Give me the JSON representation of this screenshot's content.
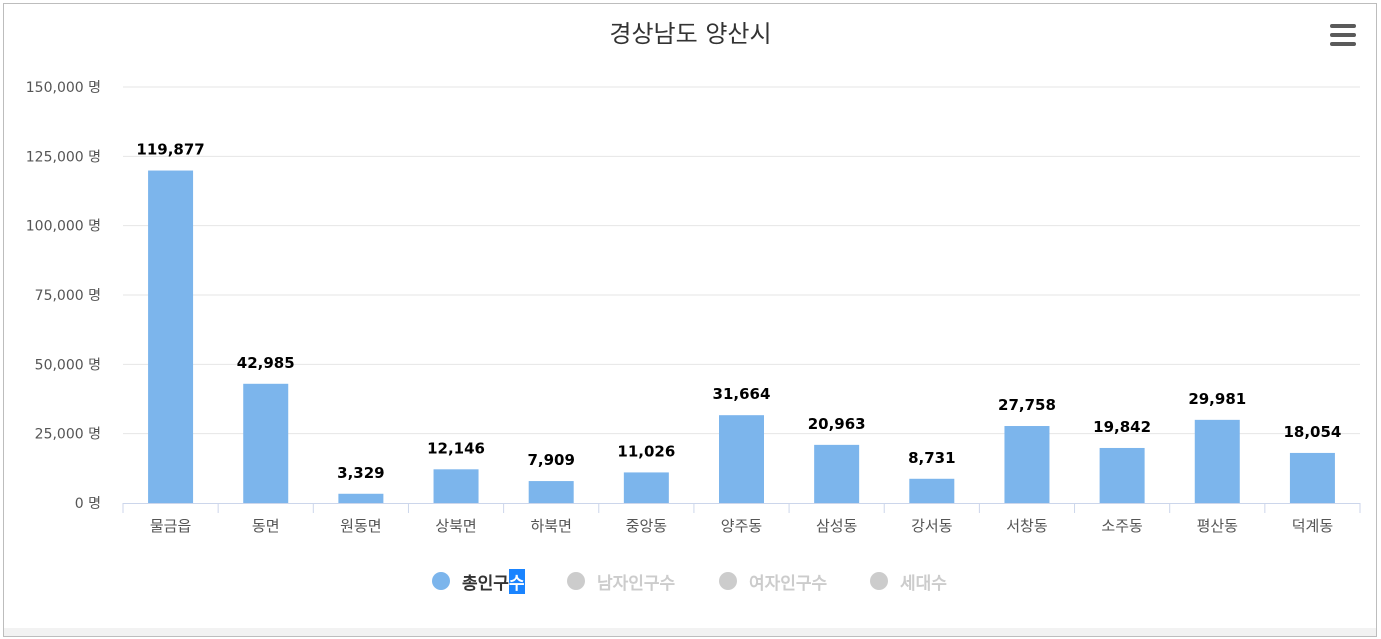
{
  "title": "경상남도 양산시",
  "menu_icon": "hamburger-menu-icon",
  "colors": {
    "bar": "#7cb5ec",
    "grid": "#e6e6e6",
    "axis": "#ccd6eb",
    "legend_inactive": "#cccccc",
    "legend_active_text": "#333333"
  },
  "chart_data": {
    "type": "bar",
    "categories": [
      "물금읍",
      "동면",
      "원동면",
      "상북면",
      "하북면",
      "중앙동",
      "양주동",
      "삼성동",
      "강서동",
      "서창동",
      "소주동",
      "평산동",
      "덕계동"
    ],
    "series": [
      {
        "name": "총인구수",
        "values": [
          119877,
          42985,
          3329,
          12146,
          7909,
          11026,
          31664,
          20963,
          8731,
          27758,
          19842,
          29981,
          18054
        ],
        "data_labels": [
          "119,877",
          "42,985",
          "3,329",
          "12,146",
          "7,909",
          "11,026",
          "31,664",
          "20,963",
          "8,731",
          "27,758",
          "19,842",
          "29,981",
          "18,054"
        ]
      }
    ],
    "ylim": [
      0,
      150000
    ],
    "y_ticks": [
      0,
      25000,
      50000,
      75000,
      100000,
      125000,
      150000
    ],
    "y_tick_labels": [
      "0 명",
      "25,000 명",
      "50,000 명",
      "75,000 명",
      "100,000 명",
      "125,000 명",
      "150,000 명"
    ],
    "grid": true,
    "legend_position": "bottom-center"
  },
  "legend": [
    {
      "label_main": "총인구",
      "label_tail": "수",
      "active": true
    },
    {
      "label_main": "남자인구수",
      "label_tail": "",
      "active": false
    },
    {
      "label_main": "여자인구수",
      "label_tail": "",
      "active": false
    },
    {
      "label_main": "세대수",
      "label_tail": "",
      "active": false
    }
  ]
}
